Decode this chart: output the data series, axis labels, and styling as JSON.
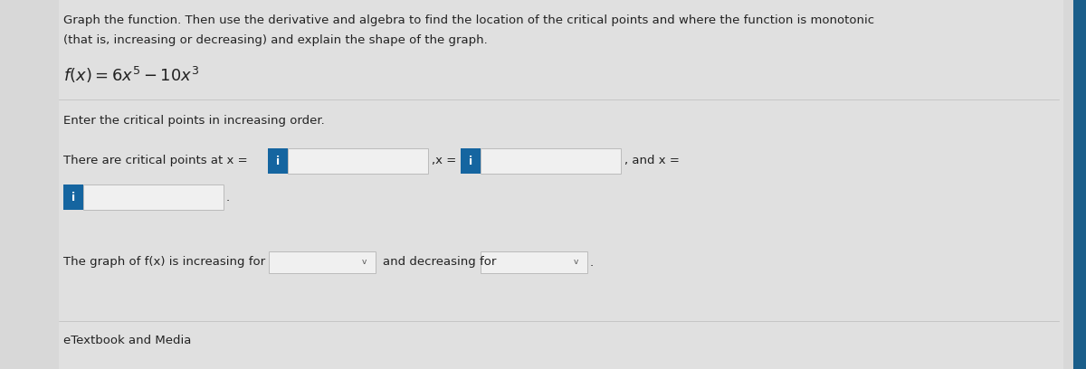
{
  "background_color": "#d8d8d8",
  "white_panel_color": "#e8e8e8",
  "title_text_line1": "Graph the function. Then use the derivative and algebra to find the location of the critical points and where the function is monotonic",
  "title_text_line2": "(that is, increasing or decreasing) and explain the shape of the graph.",
  "instruction": "Enter the critical points in increasing order.",
  "critical_text": "There are critical points at x =",
  "and_x_text": ",x =",
  "and_x2_text": ", and x =",
  "input_box_color": "#1565a0",
  "input_box_text": "i",
  "input_box_text_color": "#ffffff",
  "input_field_color": "#f0f0f0",
  "input_field_border": "#bbbbbb",
  "increasing_text": "The graph of f​(x) is increasing for",
  "and_decreasing_text": "and decreasing for",
  "footer_text": "eTextbook and Media",
  "font_color": "#222222",
  "font_size_title": 9.5,
  "font_size_body": 9.0,
  "right_bar_color": "#1a5e8a",
  "right_bar_width": 0.012
}
